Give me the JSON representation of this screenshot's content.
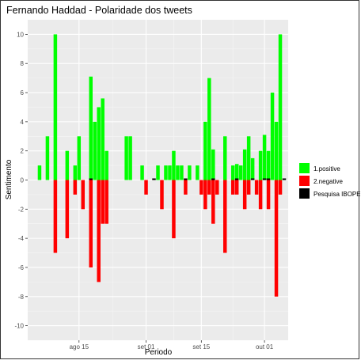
{
  "chart_data": {
    "type": "bar",
    "title": "Fernando Haddad - Polaridade dos tweets",
    "xlabel": "Periodo",
    "ylabel": "Sentimento",
    "ylim": [
      -11,
      11
    ],
    "yticks": [
      -10,
      -8,
      -6,
      -4,
      -2,
      0,
      2,
      4,
      6,
      8,
      10
    ],
    "xlim": [
      "2018-08-02",
      "2018-10-07"
    ],
    "xticks": [
      {
        "date": "2018-08-15",
        "label": "ago 15"
      },
      {
        "date": "2018-09-01",
        "label": "set 01"
      },
      {
        "date": "2018-09-15",
        "label": "set 15"
      },
      {
        "date": "2018-10-01",
        "label": "out 01"
      }
    ],
    "grid": true,
    "legend_position": "right",
    "series": [
      {
        "name": "1.positive",
        "color": "#00ff00",
        "points": [
          [
            "2018-08-05",
            1
          ],
          [
            "2018-08-07",
            3
          ],
          [
            "2018-08-09",
            10
          ],
          [
            "2018-08-12",
            2
          ],
          [
            "2018-08-14",
            1
          ],
          [
            "2018-08-15",
            3
          ],
          [
            "2018-08-18",
            7.1
          ],
          [
            "2018-08-19",
            4
          ],
          [
            "2018-08-20",
            5
          ],
          [
            "2018-08-21",
            5.6
          ],
          [
            "2018-08-22",
            2
          ],
          [
            "2018-08-27",
            3
          ],
          [
            "2018-08-28",
            3
          ],
          [
            "2018-08-31",
            1
          ],
          [
            "2018-09-04",
            1
          ],
          [
            "2018-09-06",
            1
          ],
          [
            "2018-09-07",
            1
          ],
          [
            "2018-09-08",
            2
          ],
          [
            "2018-09-09",
            1
          ],
          [
            "2018-09-10",
            1
          ],
          [
            "2018-09-12",
            1
          ],
          [
            "2018-09-14",
            1
          ],
          [
            "2018-09-16",
            4
          ],
          [
            "2018-09-17",
            7
          ],
          [
            "2018-09-18",
            2.1
          ],
          [
            "2018-09-21",
            3
          ],
          [
            "2018-09-23",
            1
          ],
          [
            "2018-09-24",
            1.1
          ],
          [
            "2018-09-25",
            1
          ],
          [
            "2018-09-26",
            2.1
          ],
          [
            "2018-09-27",
            3
          ],
          [
            "2018-09-28",
            1.5
          ],
          [
            "2018-09-30",
            2
          ],
          [
            "2018-10-01",
            3.1
          ],
          [
            "2018-10-02",
            2
          ],
          [
            "2018-10-03",
            6
          ],
          [
            "2018-10-04",
            4
          ],
          [
            "2018-10-05",
            10
          ]
        ]
      },
      {
        "name": "2.negative",
        "color": "#ff0000",
        "points": [
          [
            "2018-08-09",
            -5
          ],
          [
            "2018-08-12",
            -4
          ],
          [
            "2018-08-14",
            -1
          ],
          [
            "2018-08-16",
            -2
          ],
          [
            "2018-08-18",
            -6
          ],
          [
            "2018-08-20",
            -7
          ],
          [
            "2018-08-21",
            -3
          ],
          [
            "2018-08-22",
            -3
          ],
          [
            "2018-09-01",
            -1
          ],
          [
            "2018-09-05",
            -2
          ],
          [
            "2018-09-08",
            -4
          ],
          [
            "2018-09-11",
            -1
          ],
          [
            "2018-09-15",
            -1
          ],
          [
            "2018-09-16",
            -2
          ],
          [
            "2018-09-17",
            -1
          ],
          [
            "2018-09-18",
            -3
          ],
          [
            "2018-09-19",
            -1
          ],
          [
            "2018-09-21",
            -5
          ],
          [
            "2018-09-23",
            -1
          ],
          [
            "2018-09-24",
            -1
          ],
          [
            "2018-09-26",
            -2
          ],
          [
            "2018-09-27",
            -1
          ],
          [
            "2018-09-29",
            -1
          ],
          [
            "2018-09-30",
            -2
          ],
          [
            "2018-10-02",
            -2
          ],
          [
            "2018-10-04",
            -8
          ],
          [
            "2018-10-05",
            -1
          ]
        ]
      },
      {
        "name": "Pesquisa IBOPE",
        "color": "#000000",
        "points": [
          [
            "2018-08-18",
            0.08
          ],
          [
            "2018-09-03",
            0.08
          ],
          [
            "2018-09-11",
            0.08
          ],
          [
            "2018-09-18",
            0.08
          ],
          [
            "2018-09-24",
            0.08
          ],
          [
            "2018-09-28",
            0.08
          ],
          [
            "2018-10-01",
            0.08
          ],
          [
            "2018-10-02",
            0.08
          ],
          [
            "2018-10-06",
            0.08
          ]
        ]
      }
    ]
  }
}
